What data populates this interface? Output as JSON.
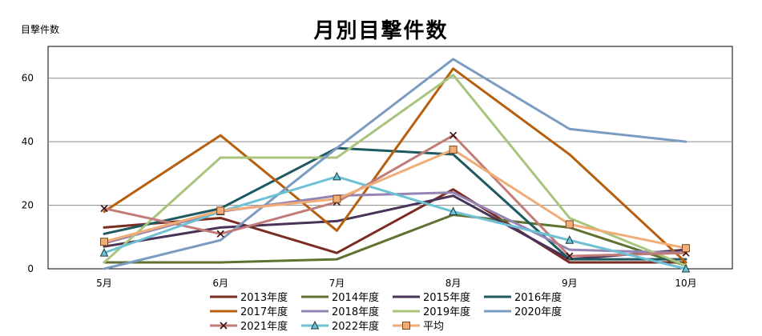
{
  "chart_data": {
    "type": "line",
    "title": "月別目撃件数",
    "ylabel": "目撃件数",
    "xlabel": "",
    "categories": [
      "5月",
      "6月",
      "7月",
      "8月",
      "9月",
      "10月"
    ],
    "ylim": [
      0,
      70
    ],
    "yticks": [
      0,
      20,
      40,
      60
    ],
    "grid": true,
    "legend": "bottom",
    "series": [
      {
        "name": "2013年度",
        "color": "#7b2c22",
        "marker": "none",
        "values": [
          13,
          16,
          5,
          25,
          2,
          2
        ]
      },
      {
        "name": "2014年度",
        "color": "#5e7232",
        "marker": "none",
        "values": [
          2,
          2,
          3,
          17,
          13,
          1
        ]
      },
      {
        "name": "2015年度",
        "color": "#4a3358",
        "marker": "none",
        "values": [
          7,
          13,
          15,
          23,
          3,
          6
        ]
      },
      {
        "name": "2016年度",
        "color": "#1f5a61",
        "marker": "none",
        "values": [
          11,
          19,
          38,
          36,
          3,
          3
        ]
      },
      {
        "name": "2017年度",
        "color": "#b5600f",
        "marker": "none",
        "values": [
          18,
          42,
          12,
          63,
          36,
          2
        ]
      },
      {
        "name": "2018年度",
        "color": "#9683b5",
        "marker": "none",
        "values": [
          8,
          18,
          23,
          24,
          6,
          5
        ]
      },
      {
        "name": "2019年度",
        "color": "#a9c47d",
        "marker": "none",
        "values": [
          2,
          35,
          35,
          61,
          16,
          1
        ]
      },
      {
        "name": "2020年度",
        "color": "#7b9cc1",
        "marker": "none",
        "values": [
          0,
          9,
          38,
          66,
          44,
          40
        ]
      },
      {
        "name": "2021年度",
        "color": "#c27c78",
        "marker": "x",
        "values": [
          19,
          11,
          21,
          42,
          4,
          5
        ]
      },
      {
        "name": "2022年度",
        "color": "#6ec0d4",
        "marker": "triangle",
        "values": [
          5,
          18,
          29,
          18,
          9,
          0
        ]
      },
      {
        "name": "平均",
        "color": "#f0ad77",
        "marker": "square",
        "values": [
          8.5,
          18.3,
          22,
          37.5,
          14,
          6.5
        ]
      }
    ]
  }
}
